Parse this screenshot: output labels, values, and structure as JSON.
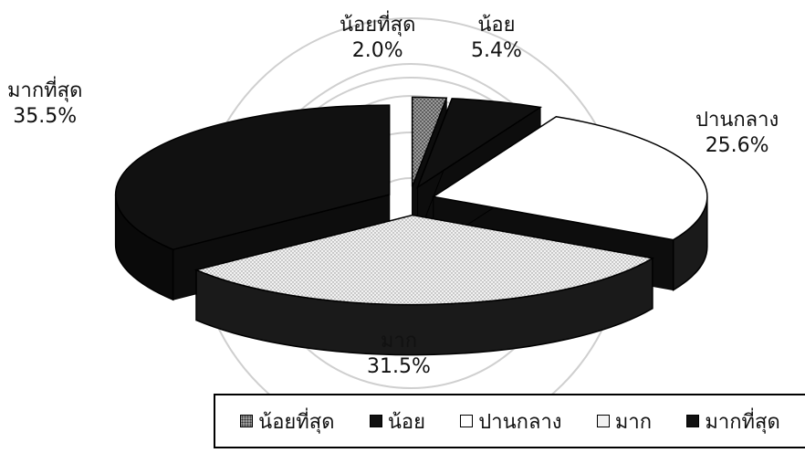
{
  "chart_data": {
    "type": "pie",
    "style": "3d-exploded",
    "slices": [
      {
        "label": "น้อยที่สุด",
        "value": 2.0,
        "value_label": "2.0%",
        "fill": "#8a8a8a",
        "pattern": "dots"
      },
      {
        "label": "น้อย",
        "value": 5.4,
        "value_label": "5.4%",
        "fill": "#111111",
        "pattern": "none"
      },
      {
        "label": "ปานกลาง",
        "value": 25.6,
        "value_label": "25.6%",
        "fill": "#ffffff",
        "pattern": "none"
      },
      {
        "label": "มาก",
        "value": 31.5,
        "value_label": "31.5%",
        "fill": "#e9e9e9",
        "pattern": "dots"
      },
      {
        "label": "มากที่สุด",
        "value": 35.5,
        "value_label": "35.5%",
        "fill": "#111111",
        "pattern": "none"
      }
    ],
    "legend": {
      "position": "bottom",
      "entries": [
        "น้อยที่สุด",
        "น้อย",
        "ปานกลาง",
        "มาก",
        "มากที่สุด"
      ]
    }
  }
}
